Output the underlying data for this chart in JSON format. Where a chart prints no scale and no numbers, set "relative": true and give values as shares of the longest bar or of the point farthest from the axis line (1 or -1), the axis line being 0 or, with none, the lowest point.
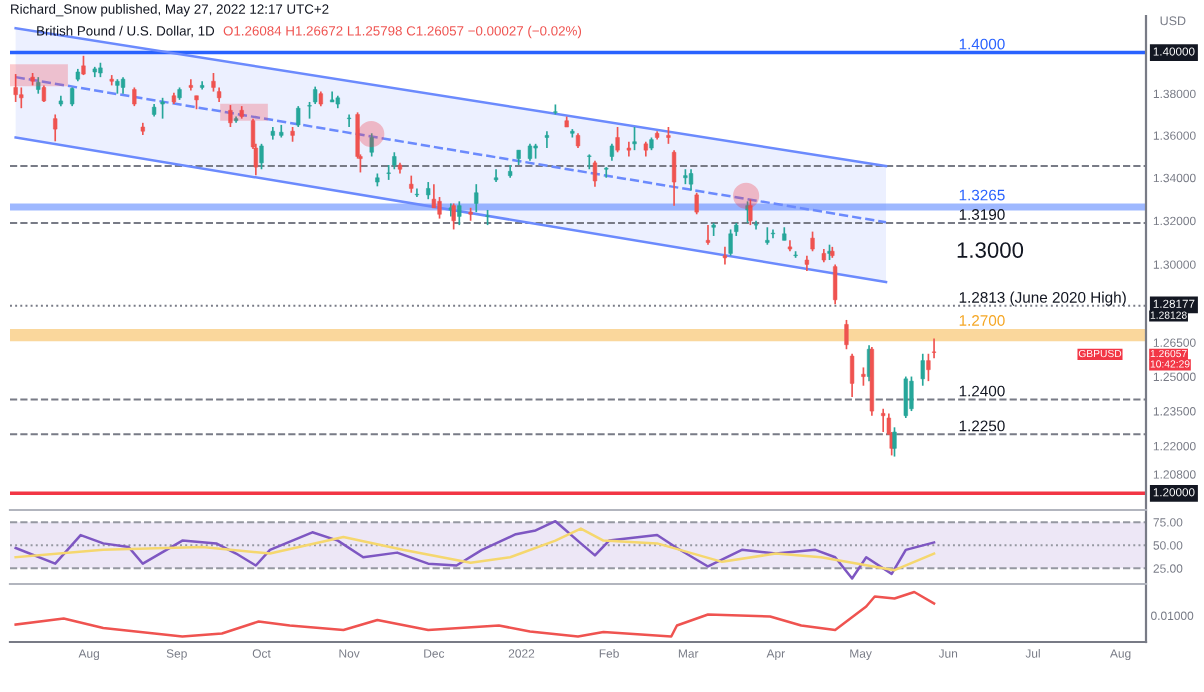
{
  "chart_data": [
    {
      "type": "candlestick",
      "title": "British Pound / U.S. Dollar, 1D",
      "subtitle": "O1.26084 H1.26672 L1.25798 C1.26057 −0.00027 (−0.02%)",
      "ylabel": "USD",
      "log": true,
      "tick_labels": "y",
      "annotations": [
        "Richard_Snow published, May 27, 2022 12:17 UTC+2",
        "1.3000",
        {
          "text": "1.40000",
          "y": 1.4
        },
        {
          "text": "1.28177",
          "y": 1.28177
        },
        "1.28128",
        "1.26057",
        "10:42:29",
        "GBPUSD",
        {
          "text": "1.20000",
          "y": 1.2
        }
      ],
      "xlim": [
        "2021-07-04",
        "2022-08-10"
      ],
      "ylim": [
        1.193,
        1.418
      ],
      "yticks": [
        {
          "value": 1.38,
          "label": "1.38000"
        },
        {
          "value": 1.36,
          "label": "1.36000"
        },
        {
          "value": 1.34,
          "label": "1.34000"
        },
        {
          "value": 1.32,
          "label": "1.32000"
        },
        {
          "value": 1.3,
          "label": "1.30000"
        },
        {
          "value": 1.265,
          "label": "1.26500"
        },
        {
          "value": 1.25,
          "label": "1.25000"
        },
        {
          "value": 1.235,
          "label": "1.23500"
        },
        {
          "value": 1.22,
          "label": "1.22000"
        },
        {
          "value": 1.208,
          "label": "1.20800"
        }
      ],
      "x": [
        "2021-07-06",
        "2021-07-08",
        "2021-07-12",
        "2021-07-14",
        "2021-07-16",
        "2021-07-20",
        "2021-07-22",
        "2021-07-26",
        "2021-07-28",
        "2021-07-30",
        "2021-08-03",
        "2021-08-05",
        "2021-08-09",
        "2021-08-11",
        "2021-08-13",
        "2021-08-17",
        "2021-08-20",
        "2021-08-24",
        "2021-08-27",
        "2021-08-31",
        "2021-09-02",
        "2021-09-06",
        "2021-09-08",
        "2021-09-10",
        "2021-09-14",
        "2021-09-16",
        "2021-09-20",
        "2021-09-22",
        "2021-09-24",
        "2021-09-28",
        "2021-09-29",
        "2021-10-01",
        "2021-10-05",
        "2021-10-08",
        "2021-10-12",
        "2021-10-14",
        "2021-10-18",
        "2021-10-20",
        "2021-10-22",
        "2021-10-26",
        "2021-10-28",
        "2021-11-01",
        "2021-11-04",
        "2021-11-05",
        "2021-11-09",
        "2021-11-11",
        "2021-11-15",
        "2021-11-17",
        "2021-11-19",
        "2021-11-23",
        "2021-11-25",
        "2021-11-29",
        "2021-12-01",
        "2021-12-03",
        "2021-12-07",
        "2021-12-08",
        "2021-12-10",
        "2021-12-14",
        "2021-12-16",
        "2021-12-20",
        "2021-12-23",
        "2021-12-28",
        "2021-12-31",
        "2022-01-04",
        "2022-01-06",
        "2022-01-10",
        "2022-01-13",
        "2022-01-17",
        "2022-01-19",
        "2022-01-21",
        "2022-01-25",
        "2022-01-27",
        "2022-01-31",
        "2022-02-02",
        "2022-02-04",
        "2022-02-08",
        "2022-02-10",
        "2022-02-14",
        "2022-02-16",
        "2022-02-18",
        "2022-02-22",
        "2022-02-24",
        "2022-02-28",
        "2022-03-02",
        "2022-03-04",
        "2022-03-08",
        "2022-03-10",
        "2022-03-14",
        "2022-03-16",
        "2022-03-18",
        "2022-03-22",
        "2022-03-23",
        "2022-03-25",
        "2022-03-29",
        "2022-03-31",
        "2022-04-04",
        "2022-04-06",
        "2022-04-08",
        "2022-04-12",
        "2022-04-14",
        "2022-04-18",
        "2022-04-20",
        "2022-04-21",
        "2022-04-22",
        "2022-04-26",
        "2022-04-28",
        "2022-05-02",
        "2022-05-04",
        "2022-05-05",
        "2022-05-09",
        "2022-05-11",
        "2022-05-12",
        "2022-05-13",
        "2022-05-17",
        "2022-05-19",
        "2022-05-23",
        "2022-05-25",
        "2022-05-27"
      ],
      "ohlc": [
        [
          1.383,
          1.3895,
          1.376,
          1.3795
        ],
        [
          1.3795,
          1.383,
          1.373,
          1.378
        ],
        [
          1.388,
          1.39,
          1.384,
          1.386
        ],
        [
          1.382,
          1.388,
          1.38,
          1.3855
        ],
        [
          1.383,
          1.384,
          1.376,
          1.3765
        ],
        [
          1.368,
          1.37,
          1.3572,
          1.363
        ],
        [
          1.375,
          1.379,
          1.374,
          1.3765
        ],
        [
          1.375,
          1.383,
          1.374,
          1.3825
        ],
        [
          1.387,
          1.392,
          1.386,
          1.3905
        ],
        [
          1.3935,
          1.3984,
          1.389,
          1.3895
        ],
        [
          1.3905,
          1.393,
          1.388,
          1.392
        ],
        [
          1.39,
          1.395,
          1.388,
          1.3925
        ],
        [
          1.387,
          1.389,
          1.384,
          1.386
        ],
        [
          1.384,
          1.387,
          1.38,
          1.386
        ],
        [
          1.383,
          1.388,
          1.38,
          1.387
        ],
        [
          1.382,
          1.383,
          1.374,
          1.375
        ],
        [
          1.364,
          1.366,
          1.3602,
          1.362
        ],
        [
          1.37,
          1.375,
          1.369,
          1.3735
        ],
        [
          1.375,
          1.378,
          1.368,
          1.376
        ],
        [
          1.379,
          1.3805,
          1.375,
          1.376
        ],
        [
          1.378,
          1.383,
          1.377,
          1.382
        ],
        [
          1.384,
          1.387,
          1.3815,
          1.383
        ],
        [
          1.379,
          1.379,
          1.3725,
          1.377
        ],
        [
          1.383,
          1.386,
          1.382,
          1.384
        ],
        [
          1.386,
          1.39,
          1.381,
          1.383
        ],
        [
          1.381,
          1.383,
          1.376,
          1.378
        ],
        [
          1.372,
          1.3745,
          1.364,
          1.366
        ],
        [
          1.367,
          1.369,
          1.366,
          1.368
        ],
        [
          1.372,
          1.374,
          1.368,
          1.369
        ],
        [
          1.367,
          1.368,
          1.3535,
          1.3545
        ],
        [
          1.354,
          1.356,
          1.3412,
          1.345
        ],
        [
          1.347,
          1.356,
          1.344,
          1.355
        ],
        [
          1.36,
          1.364,
          1.358,
          1.362
        ],
        [
          1.36,
          1.365,
          1.359,
          1.3615
        ],
        [
          1.362,
          1.364,
          1.357,
          1.36
        ],
        [
          1.365,
          1.374,
          1.364,
          1.373
        ],
        [
          1.374,
          1.376,
          1.368,
          1.374
        ],
        [
          1.376,
          1.3834,
          1.375,
          1.382
        ],
        [
          1.38,
          1.381,
          1.374,
          1.375
        ],
        [
          1.376,
          1.381,
          1.376,
          1.377
        ],
        [
          1.375,
          1.379,
          1.373,
          1.378
        ],
        [
          1.368,
          1.37,
          1.364,
          1.368
        ],
        [
          1.37,
          1.371,
          1.349,
          1.35
        ],
        [
          1.35,
          1.351,
          1.3425,
          1.349
        ],
        [
          1.352,
          1.361,
          1.35,
          1.359
        ],
        [
          1.338,
          1.342,
          1.336,
          1.34
        ],
        [
          1.342,
          1.346,
          1.339,
          1.342
        ],
        [
          1.346,
          1.352,
          1.344,
          1.35
        ],
        [
          1.346,
          1.347,
          1.342,
          1.344
        ],
        [
          1.337,
          1.341,
          1.333,
          1.335
        ],
        [
          1.332,
          1.335,
          1.331,
          1.332
        ],
        [
          1.332,
          1.338,
          1.33,
          1.335
        ],
        [
          1.33,
          1.337,
          1.326,
          1.326
        ],
        [
          1.329,
          1.331,
          1.321,
          1.323
        ],
        [
          1.325,
          1.328,
          1.322,
          1.326
        ],
        [
          1.327,
          1.328,
          1.316,
          1.32
        ],
        [
          1.322,
          1.329,
          1.318,
          1.327
        ],
        [
          1.324,
          1.326,
          1.32,
          1.323
        ],
        [
          1.328,
          1.337,
          1.324,
          1.333
        ],
        [
          1.322,
          1.325,
          1.318,
          1.322
        ],
        [
          1.339,
          1.344,
          1.338,
          1.34
        ],
        [
          1.341,
          1.346,
          1.34,
          1.343
        ],
        [
          1.349,
          1.353,
          1.346,
          1.353
        ],
        [
          1.349,
          1.356,
          1.348,
          1.355
        ],
        [
          1.354,
          1.356,
          1.349,
          1.355
        ],
        [
          1.359,
          1.362,
          1.354,
          1.36
        ],
        [
          1.371,
          1.3748,
          1.37,
          1.371
        ],
        [
          1.367,
          1.369,
          1.364,
          1.364
        ],
        [
          1.361,
          1.363,
          1.359,
          1.362
        ],
        [
          1.36,
          1.361,
          1.354,
          1.355
        ],
        [
          1.35,
          1.351,
          1.344,
          1.35
        ],
        [
          1.347,
          1.348,
          1.3358,
          1.3385
        ],
        [
          1.344,
          1.345,
          1.34,
          1.3445
        ],
        [
          1.35,
          1.356,
          1.348,
          1.355
        ],
        [
          1.359,
          1.364,
          1.352,
          1.353
        ],
        [
          1.354,
          1.357,
          1.35,
          1.353
        ],
        [
          1.356,
          1.364,
          1.353,
          1.357
        ],
        [
          1.356,
          1.357,
          1.35,
          1.353
        ],
        [
          1.354,
          1.359,
          1.353,
          1.358
        ],
        [
          1.361,
          1.362,
          1.358,
          1.359
        ],
        [
          1.36,
          1.364,
          1.356,
          1.359
        ],
        [
          1.352,
          1.353,
          1.327,
          1.338
        ],
        [
          1.34,
          1.344,
          1.337,
          1.341
        ],
        [
          1.337,
          1.344,
          1.334,
          1.342
        ],
        [
          1.332,
          1.333,
          1.323,
          1.324
        ],
        [
          1.311,
          1.318,
          1.309,
          1.31
        ],
        [
          1.317,
          1.319,
          1.313,
          1.318
        ],
        [
          1.304,
          1.308,
          1.3,
          1.303
        ],
        [
          1.305,
          1.316,
          1.304,
          1.314
        ],
        [
          1.315,
          1.319,
          1.313,
          1.318
        ],
        [
          1.325,
          1.329,
          1.319,
          1.327
        ],
        [
          1.327,
          1.3299,
          1.318,
          1.32
        ],
        [
          1.318,
          1.32,
          1.316,
          1.318
        ],
        [
          1.31,
          1.317,
          1.309,
          1.311
        ],
        [
          1.314,
          1.316,
          1.312,
          1.314
        ],
        [
          1.311,
          1.317,
          1.311,
          1.314
        ],
        [
          1.308,
          1.311,
          1.306,
          1.307
        ],
        [
          1.304,
          1.306,
          1.303,
          1.304
        ],
        [
          1.302,
          1.304,
          1.297,
          1.3
        ],
        [
          1.312,
          1.315,
          1.306,
          1.307
        ],
        [
          1.305,
          1.307,
          1.301,
          1.302
        ],
        [
          1.305,
          1.309,
          1.302,
          1.306
        ],
        [
          1.306,
          1.308,
          1.303,
          1.304
        ],
        [
          1.299,
          1.3,
          1.282,
          1.284
        ],
        [
          1.273,
          1.275,
          1.262,
          1.264
        ],
        [
          1.259,
          1.26,
          1.2411,
          1.247
        ],
        [
          1.251,
          1.254,
          1.246,
          1.25
        ],
        [
          1.25,
          1.2638,
          1.248,
          1.262
        ],
        [
          1.262,
          1.263,
          1.233,
          1.235
        ],
        [
          1.234,
          1.236,
          1.226,
          1.233
        ],
        [
          1.232,
          1.234,
          1.225,
          1.225
        ],
        [
          1.225,
          1.226,
          1.216,
          1.219
        ],
        [
          1.219,
          1.228,
          1.2155,
          1.226
        ],
        [
          1.233,
          1.25,
          1.232,
          1.249
        ],
        [
          1.236,
          1.25,
          1.235,
          1.248
        ],
        [
          1.249,
          1.26,
          1.246,
          1.257
        ],
        [
          1.257,
          1.26,
          1.248,
          1.253
        ],
        [
          1.26084,
          1.26672,
          1.25798,
          1.26057
        ]
      ],
      "series": [
        {
          "type": "line",
          "color": "#6b8afd",
          "line_style": "dashed",
          "x": [
            "2021-07-06",
            "2022-05-10"
          ],
          "values": [
            1.388,
            1.3193
          ],
          "lower": [
            1.359,
            1.292
          ],
          "upper": [
            1.412,
            1.3455
          ]
        },
        {
          "type": "line",
          "color": "#6b8afd",
          "line_style": "solid",
          "x": [
            "2021-07-06",
            "2022-05-10"
          ],
          "values": [
            1.412,
            1.3455
          ]
        },
        {
          "type": "line",
          "color": "#6b8afd",
          "line_style": "solid",
          "x": [
            "2021-07-06",
            "2022-05-10"
          ],
          "values": [
            1.359,
            1.292
          ]
        }
      ],
      "ref_lines": [
        {
          "axis": "y",
          "value": 1.4,
          "label": "1.4000",
          "color": "#2962ff",
          "line_style": "solid"
        },
        {
          "axis": "y",
          "value": 1.3455,
          "color": "#787b86",
          "line_style": "dashed"
        },
        {
          "axis": "y",
          "value": 1.319,
          "label": "1.3190",
          "color": "#787b86",
          "line_style": "dashed"
        },
        {
          "axis": "y",
          "value": 1.2813,
          "label": "1.2813 (June 2020 High)",
          "color": "#787b86",
          "line_style": "dotted"
        },
        {
          "axis": "y",
          "value": 1.24,
          "label": "1.2400",
          "color": "#787b86",
          "line_style": "dashed"
        },
        {
          "axis": "y",
          "value": 1.225,
          "label": "1.2250",
          "color": "#787b86",
          "line_style": "dashed"
        },
        {
          "axis": "y",
          "value": 1.2,
          "color": "#f23645",
          "line_style": "solid"
        }
      ],
      "bands": [
        {
          "axis": "y",
          "from": 1.3248,
          "to": 1.328,
          "label": "1.3265",
          "color": "#2962ff"
        },
        {
          "axis": "y",
          "from": 1.2655,
          "to": 1.271,
          "label": "1.2700",
          "color": "#f5a623"
        }
      ]
    },
    {
      "type": "line",
      "tick_labels": "y",
      "xlim": [
        "2021-07-04",
        "2022-08-10"
      ],
      "ylim": [
        8,
        86
      ],
      "yticks": [
        {
          "value": 75,
          "label": "75.00"
        },
        {
          "value": 50,
          "label": "50.00"
        },
        {
          "value": 25,
          "label": "25.00"
        }
      ],
      "series": [
        {
          "color": "#7e57c2",
          "x": [
            "2021-07-06",
            "2021-07-20",
            "2021-07-29",
            "2021-08-06",
            "2021-08-15",
            "2021-08-20",
            "2021-09-03",
            "2021-09-15",
            "2021-09-22",
            "2021-09-29",
            "2021-10-04",
            "2021-10-19",
            "2021-10-28",
            "2021-11-06",
            "2021-11-18",
            "2021-11-29",
            "2021-12-09",
            "2021-12-18",
            "2021-12-30",
            "2022-01-06",
            "2022-01-13",
            "2022-01-22",
            "2022-01-27",
            "2022-02-01",
            "2022-02-18",
            "2022-02-25",
            "2022-03-08",
            "2022-03-20",
            "2022-04-01",
            "2022-04-15",
            "2022-04-22",
            "2022-04-28",
            "2022-05-03",
            "2022-05-12",
            "2022-05-17",
            "2022-05-27"
          ],
          "values": [
            47,
            30,
            61,
            52,
            48,
            30,
            55,
            52,
            41,
            28,
            45,
            64,
            55,
            37,
            42,
            30,
            28,
            45,
            62,
            66,
            76,
            52,
            39,
            55,
            61,
            47,
            27,
            45,
            41,
            45,
            37,
            14,
            37,
            19,
            45,
            53
          ]
        },
        {
          "color": "#f5d76e",
          "x": [
            "2021-07-06",
            "2021-08-06",
            "2021-09-10",
            "2021-10-04",
            "2021-10-30",
            "2021-11-20",
            "2021-12-14",
            "2021-12-28",
            "2022-01-13",
            "2022-01-22",
            "2022-01-30",
            "2022-02-18",
            "2022-03-13",
            "2022-04-01",
            "2022-04-17",
            "2022-05-13",
            "2022-05-27"
          ],
          "values": [
            37,
            45,
            48,
            41,
            59,
            45,
            31,
            37,
            55,
            68,
            55,
            52,
            32,
            41,
            37,
            23,
            41
          ]
        }
      ],
      "ref_lines": [
        {
          "axis": "y",
          "value": 75,
          "color": "#9598a1",
          "line_style": "dashed"
        },
        {
          "axis": "y",
          "value": 50,
          "color": "#9598a1",
          "line_style": "dotted"
        },
        {
          "axis": "y",
          "value": 25,
          "color": "#9598a1",
          "line_style": "dashed"
        }
      ],
      "bands": [
        {
          "axis": "y",
          "from": 25,
          "to": 75,
          "color": "#ede7f6"
        }
      ]
    },
    {
      "type": "line",
      "relative": true,
      "tick_labels": "x",
      "xlim": [
        "2021-07-04",
        "2022-08-10"
      ],
      "annotations": [
        "0.01000"
      ],
      "xticks": [
        {
          "value": "2021-08-01",
          "label": "Aug"
        },
        {
          "value": "2021-09-01",
          "label": "Sep"
        },
        {
          "value": "2021-10-01",
          "label": "Oct"
        },
        {
          "value": "2021-11-01",
          "label": "Nov"
        },
        {
          "value": "2021-12-01",
          "label": "Dec"
        },
        {
          "value": "2022-01-01",
          "label": "2022"
        },
        {
          "value": "2022-02-01",
          "label": "Feb"
        },
        {
          "value": "2022-03-01",
          "label": "Mar"
        },
        {
          "value": "2022-04-01",
          "label": "Apr"
        },
        {
          "value": "2022-05-01",
          "label": "May"
        },
        {
          "value": "2022-06-01",
          "label": "Jun"
        },
        {
          "value": "2022-07-01",
          "label": "Jul"
        },
        {
          "value": "2022-08-01",
          "label": "Aug"
        }
      ],
      "series": [
        {
          "color": "#ef5350",
          "x": [
            "2021-07-06",
            "2021-07-23",
            "2021-08-06",
            "2021-09-03",
            "2021-09-17",
            "2021-09-30",
            "2021-10-11",
            "2021-10-30",
            "2021-11-11",
            "2021-11-29",
            "2021-12-24",
            "2022-01-04",
            "2022-01-21",
            "2022-01-30",
            "2022-02-23",
            "2022-02-25",
            "2022-03-08",
            "2022-03-30",
            "2022-04-10",
            "2022-04-22",
            "2022-05-03",
            "2022-05-06",
            "2022-05-13",
            "2022-05-20",
            "2022-05-27"
          ],
          "values": [
            0.35,
            0.47,
            0.28,
            0.11,
            0.17,
            0.41,
            0.33,
            0.24,
            0.44,
            0.24,
            0.33,
            0.21,
            0.11,
            0.2,
            0.11,
            0.33,
            0.55,
            0.51,
            0.33,
            0.24,
            0.71,
            0.91,
            0.87,
            1,
            0.77
          ]
        }
      ]
    }
  ]
}
